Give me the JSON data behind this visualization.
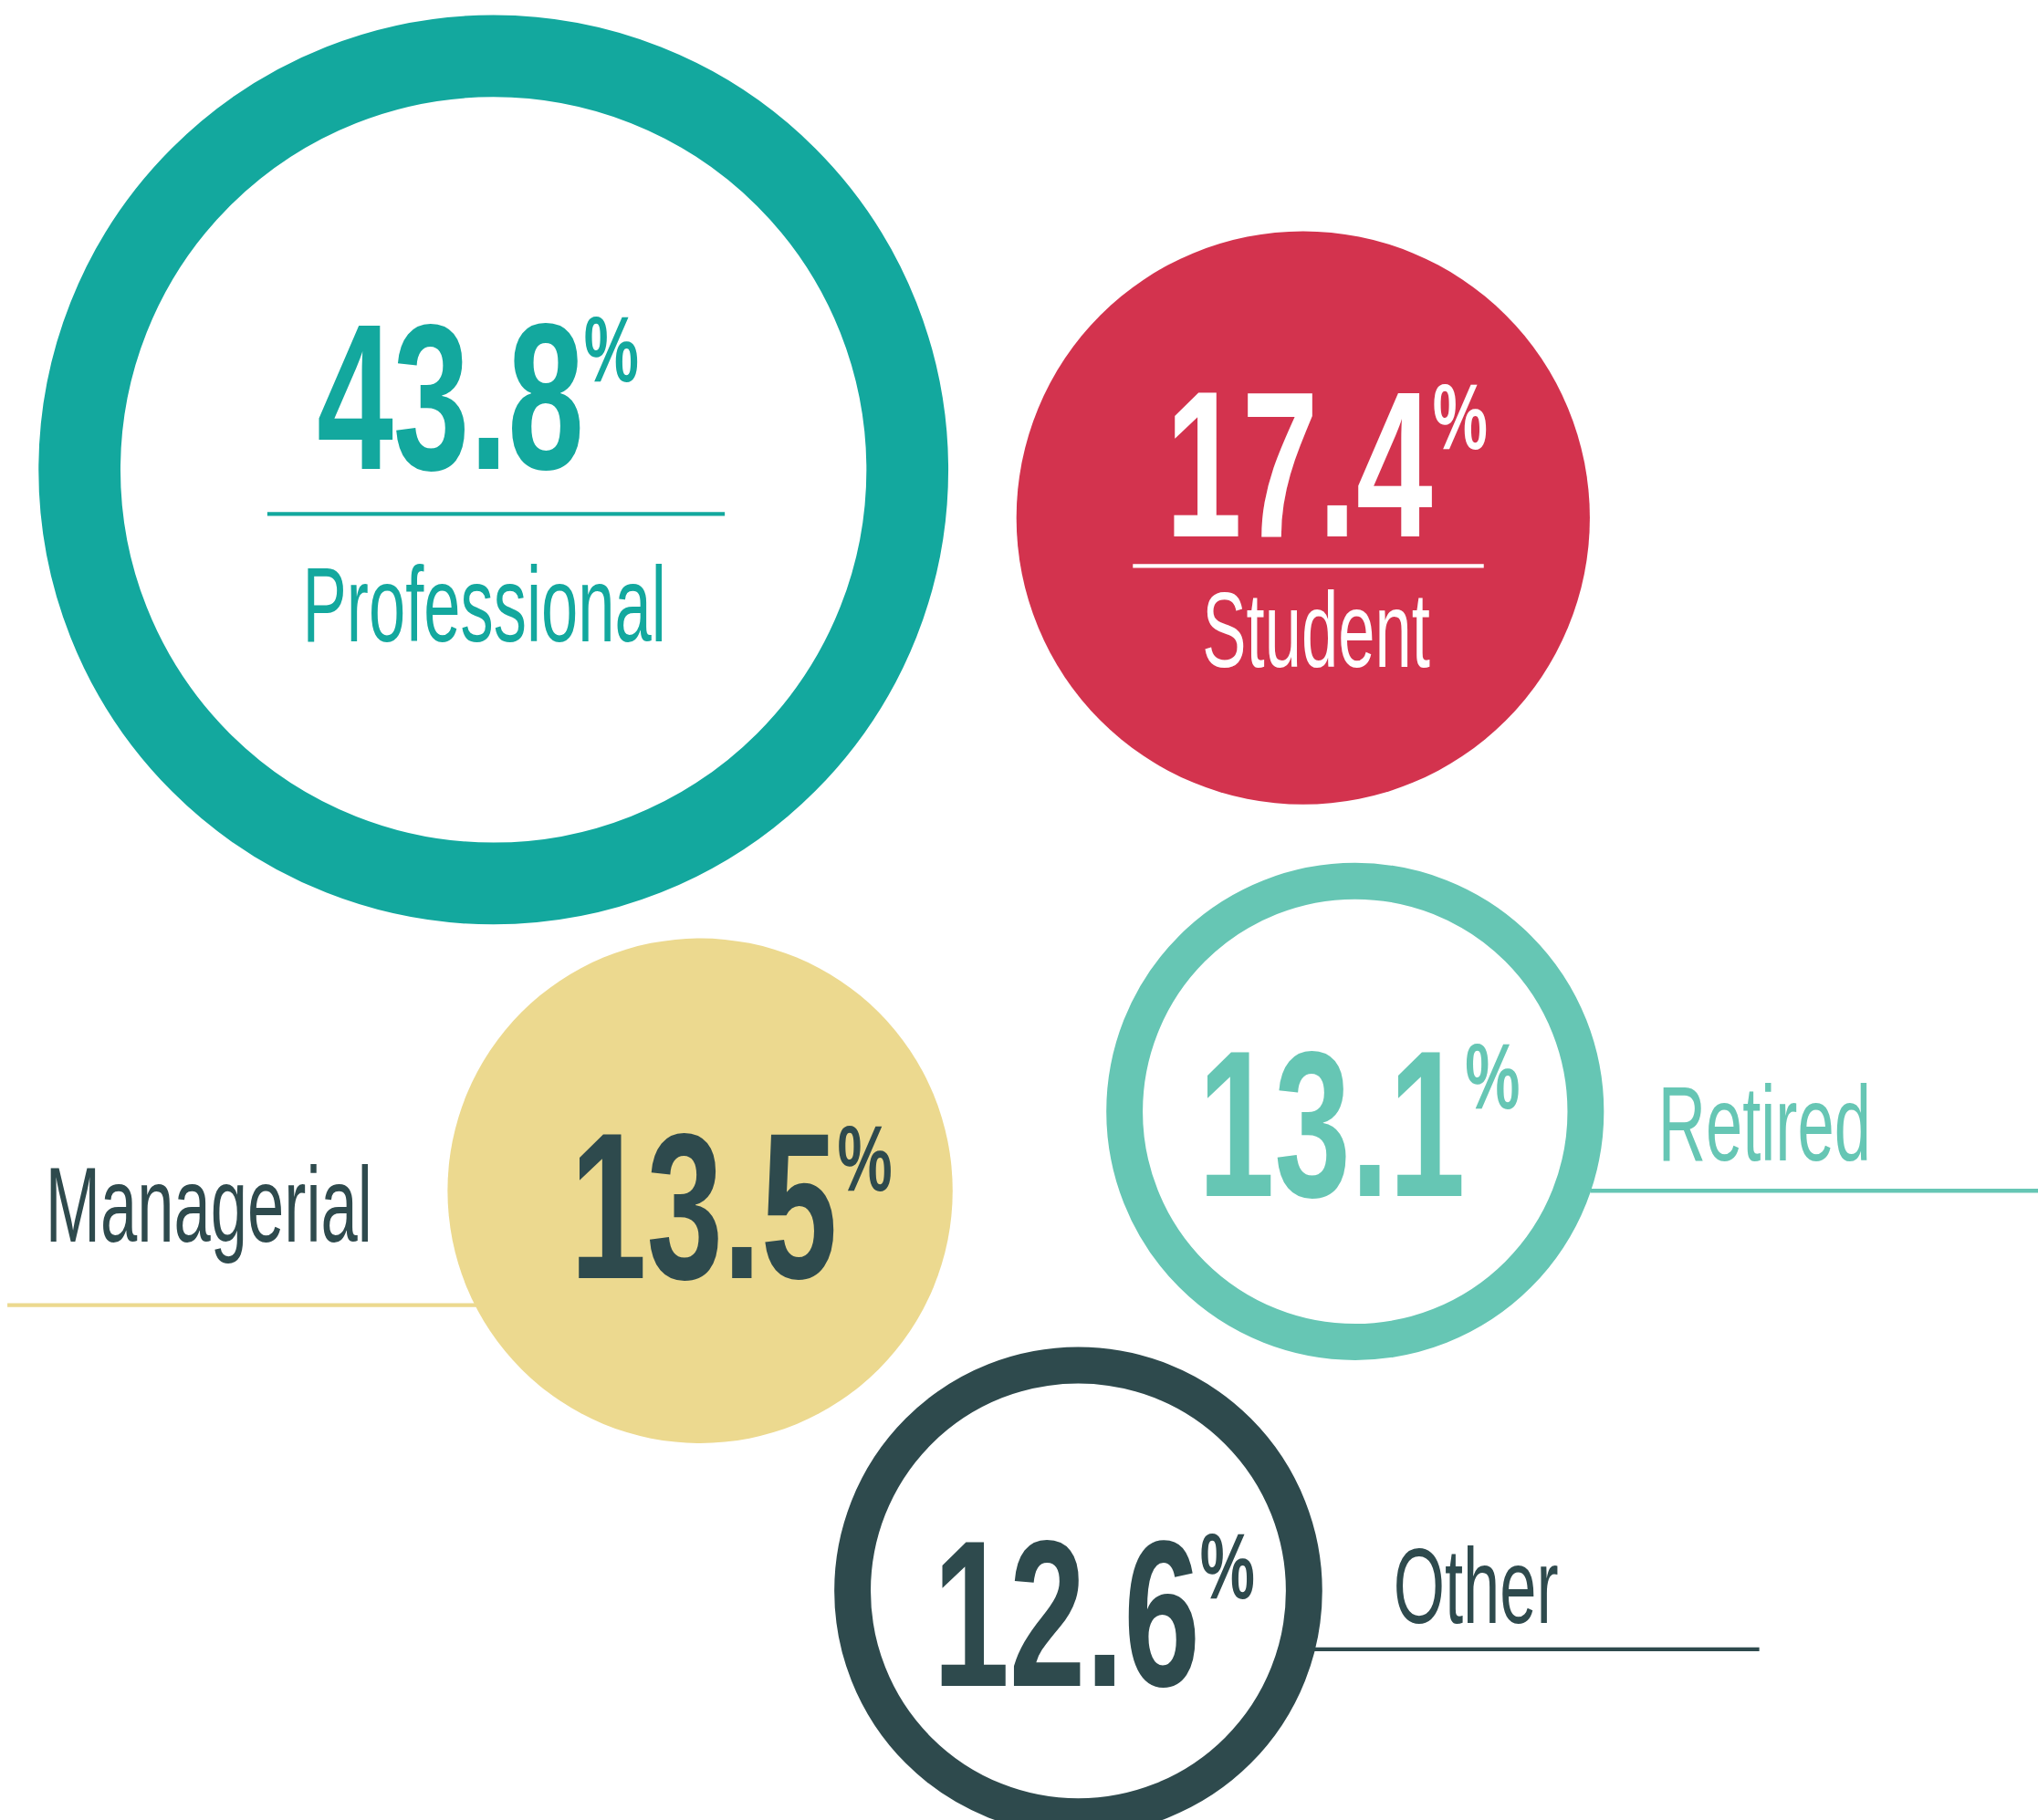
{
  "chart_data": {
    "type": "other",
    "categories": [
      "Professional",
      "Student",
      "Managerial",
      "Retired",
      "Other"
    ],
    "values": [
      43.8,
      17.4,
      13.5,
      13.1,
      12.6
    ],
    "value_labels": [
      "43.8$^{%}$",
      "17.4$^{%}$",
      "13.5$^{%}$",
      "13.1$^{%}$",
      "12.6$^{%}$"
    ],
    "colors": [
      "#13a89e",
      "#d3334e",
      "#ecd98f",
      "#66c6b4",
      "#2e4a4d"
    ]
  }
}
